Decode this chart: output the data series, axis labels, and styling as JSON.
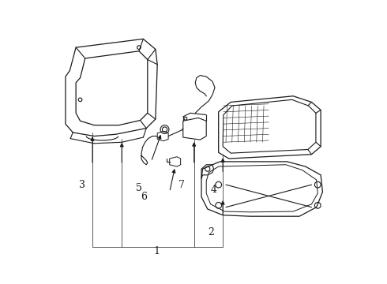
{
  "bg": "#ffffff",
  "lc": "#1a1a1a",
  "lc_light": "#555555",
  "fig_w": 4.9,
  "fig_h": 3.6,
  "dpi": 100
}
